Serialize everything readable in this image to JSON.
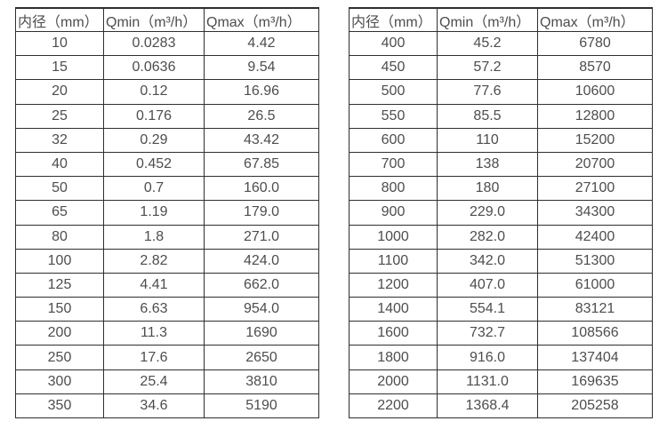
{
  "colors": {
    "background": "#ffffff",
    "border": "#2f2f2f",
    "text": "#4d4d4d"
  },
  "tables": [
    {
      "name": "flow-spec-table-small-diameters",
      "headers": [
        "内径（mm）",
        "Qmin（m³/h）",
        "Qmax（m³/h）"
      ],
      "rows": [
        [
          "10",
          "0.0283",
          "4.42"
        ],
        [
          "15",
          "0.0636",
          "9.54"
        ],
        [
          "20",
          "0.12",
          "16.96"
        ],
        [
          "25",
          "0.176",
          "26.5"
        ],
        [
          "32",
          "0.29",
          "43.42"
        ],
        [
          "40",
          "0.452",
          "67.85"
        ],
        [
          "50",
          "0.7",
          "160.0"
        ],
        [
          "65",
          "1.19",
          "179.0"
        ],
        [
          "80",
          "1.8",
          "271.0"
        ],
        [
          "100",
          "2.82",
          "424.0"
        ],
        [
          "125",
          "4.41",
          "662.0"
        ],
        [
          "150",
          "6.63",
          "954.0"
        ],
        [
          "200",
          "11.3",
          "1690"
        ],
        [
          "250",
          "17.6",
          "2650"
        ],
        [
          "300",
          "25.4",
          "3810"
        ],
        [
          "350",
          "34.6",
          "5190"
        ]
      ]
    },
    {
      "name": "flow-spec-table-large-diameters",
      "headers": [
        "内径（mm）",
        "Qmin（m³/h）",
        "Qmax（m³/h）"
      ],
      "rows": [
        [
          "400",
          "45.2",
          "6780"
        ],
        [
          "450",
          "57.2",
          "8570"
        ],
        [
          "500",
          "77.6",
          "10600"
        ],
        [
          "550",
          "85.5",
          "12800"
        ],
        [
          "600",
          "110",
          "15200"
        ],
        [
          "700",
          "138",
          "20700"
        ],
        [
          "800",
          "180",
          "27100"
        ],
        [
          "900",
          "229.0",
          "34300"
        ],
        [
          "1000",
          "282.0",
          "42400"
        ],
        [
          "1100",
          "342.0",
          "51300"
        ],
        [
          "1200",
          "407.0",
          "61000"
        ],
        [
          "1400",
          "554.1",
          "83121"
        ],
        [
          "1600",
          "732.7",
          "108566"
        ],
        [
          "1800",
          "916.0",
          "137404"
        ],
        [
          "2000",
          "1131.0",
          "169635"
        ],
        [
          "2200",
          "1368.4",
          "205258"
        ]
      ]
    }
  ]
}
